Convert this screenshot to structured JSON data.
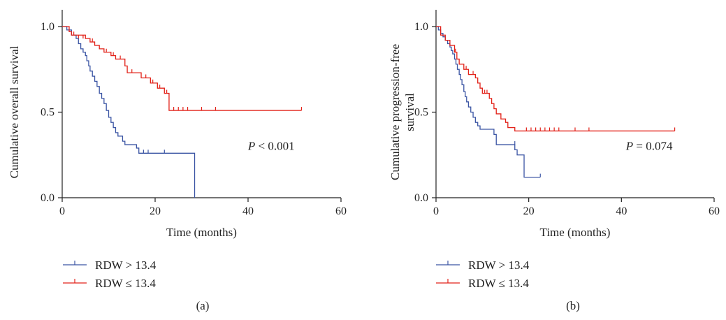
{
  "panels": [
    {
      "panel_label": "(a)",
      "chart_data": {
        "type": "line",
        "xlabel": "Time (months)",
        "ylabel": "Cumulative overall survival",
        "xlim": [
          0,
          60
        ],
        "ylim": [
          0,
          1.0
        ],
        "xticks": [
          "0",
          "20",
          "40",
          "60"
        ],
        "yticks": [
          "0.0",
          "0.5",
          "1.0"
        ],
        "annotation": {
          "prefix": "P",
          "rest": " < 0.001",
          "x": 45,
          "y": 0.28
        },
        "legend_position": "bottom-left",
        "series": [
          {
            "name": "RDW > 13.4",
            "color": "#3b55a4",
            "steps": [
              [
                0,
                1.0
              ],
              [
                1,
                0.98
              ],
              [
                2,
                0.95
              ],
              [
                3,
                0.93
              ],
              [
                3.5,
                0.9
              ],
              [
                4,
                0.87
              ],
              [
                4.5,
                0.85
              ],
              [
                5,
                0.83
              ],
              [
                5.3,
                0.8
              ],
              [
                5.7,
                0.77
              ],
              [
                6,
                0.74
              ],
              [
                6.5,
                0.71
              ],
              [
                7,
                0.68
              ],
              [
                7.5,
                0.65
              ],
              [
                8,
                0.61
              ],
              [
                8.5,
                0.58
              ],
              [
                9,
                0.55
              ],
              [
                9.5,
                0.51
              ],
              [
                10,
                0.47
              ],
              [
                10.5,
                0.44
              ],
              [
                11,
                0.41
              ],
              [
                11.5,
                0.38
              ],
              [
                12,
                0.36
              ],
              [
                13,
                0.33
              ],
              [
                13.5,
                0.31
              ],
              [
                16,
                0.29
              ],
              [
                16.5,
                0.26
              ],
              [
                28.5,
                0.0
              ]
            ],
            "end": 28.5,
            "censors": [
              [
                17.5,
                0.26
              ],
              [
                18.5,
                0.26
              ],
              [
                22,
                0.26
              ]
            ]
          },
          {
            "name": "RDW ≤ 13.4",
            "color": "#e2231a",
            "steps": [
              [
                0,
                1.0
              ],
              [
                1.5,
                0.97
              ],
              [
                2,
                0.95
              ],
              [
                5,
                0.93
              ],
              [
                6,
                0.91
              ],
              [
                7,
                0.89
              ],
              [
                8,
                0.87
              ],
              [
                9,
                0.85
              ],
              [
                10.5,
                0.83
              ],
              [
                11.5,
                0.81
              ],
              [
                13.5,
                0.77
              ],
              [
                14,
                0.73
              ],
              [
                17,
                0.7
              ],
              [
                19,
                0.67
              ],
              [
                20.5,
                0.64
              ],
              [
                22,
                0.61
              ],
              [
                23,
                0.51
              ]
            ],
            "end": 51.5,
            "censors": [
              [
                2.5,
                0.95
              ],
              [
                3.5,
                0.93
              ],
              [
                4.5,
                0.93
              ],
              [
                6.5,
                0.91
              ],
              [
                9.5,
                0.85
              ],
              [
                11,
                0.83
              ],
              [
                12.5,
                0.81
              ],
              [
                15,
                0.73
              ],
              [
                18,
                0.7
              ],
              [
                19.5,
                0.67
              ],
              [
                21,
                0.64
              ],
              [
                22.5,
                0.61
              ],
              [
                24,
                0.51
              ],
              [
                25,
                0.51
              ],
              [
                26,
                0.51
              ],
              [
                27,
                0.51
              ],
              [
                30,
                0.51
              ],
              [
                33,
                0.51
              ],
              [
                51.5,
                0.51
              ]
            ]
          }
        ]
      }
    },
    {
      "panel_label": "(b)",
      "chart_data": {
        "type": "line",
        "xlabel": "Time (months)",
        "ylabel": "Cumulative progression-free survival",
        "xlim": [
          0,
          60
        ],
        "ylim": [
          0,
          1.0
        ],
        "xticks": [
          "0",
          "20",
          "40",
          "60"
        ],
        "yticks": [
          "0.0",
          "0.5",
          "1.0"
        ],
        "annotation": {
          "prefix": "P",
          "rest": " = 0.074",
          "x": 46,
          "y": 0.28
        },
        "legend_position": "bottom-left",
        "series": [
          {
            "name": "RDW > 13.4",
            "color": "#3b55a4",
            "steps": [
              [
                0,
                1.0
              ],
              [
                0.5,
                0.98
              ],
              [
                1,
                0.96
              ],
              [
                1.5,
                0.94
              ],
              [
                2,
                0.92
              ],
              [
                2.5,
                0.9
              ],
              [
                3,
                0.88
              ],
              [
                3.3,
                0.86
              ],
              [
                3.6,
                0.84
              ],
              [
                4,
                0.81
              ],
              [
                4.3,
                0.78
              ],
              [
                4.6,
                0.75
              ],
              [
                5,
                0.72
              ],
              [
                5.3,
                0.69
              ],
              [
                5.6,
                0.66
              ],
              [
                6,
                0.62
              ],
              [
                6.3,
                0.59
              ],
              [
                6.6,
                0.56
              ],
              [
                7,
                0.53
              ],
              [
                7.5,
                0.5
              ],
              [
                8,
                0.47
              ],
              [
                8.5,
                0.44
              ],
              [
                9,
                0.42
              ],
              [
                9.5,
                0.4
              ],
              [
                12.5,
                0.37
              ],
              [
                13,
                0.31
              ],
              [
                17,
                0.28
              ],
              [
                17.5,
                0.25
              ],
              [
                19,
                0.12
              ]
            ],
            "end": 22.5,
            "censors": [
              [
                17,
                0.31
              ],
              [
                22.5,
                0.12
              ]
            ]
          },
          {
            "name": "RDW ≤ 13.4",
            "color": "#e2231a",
            "steps": [
              [
                0,
                1.0
              ],
              [
                1,
                0.95
              ],
              [
                2,
                0.92
              ],
              [
                3,
                0.89
              ],
              [
                4,
                0.85
              ],
              [
                4.5,
                0.81
              ],
              [
                5,
                0.78
              ],
              [
                6,
                0.75
              ],
              [
                7,
                0.72
              ],
              [
                8.5,
                0.7
              ],
              [
                9,
                0.67
              ],
              [
                9.5,
                0.64
              ],
              [
                10,
                0.61
              ],
              [
                11.5,
                0.58
              ],
              [
                12,
                0.55
              ],
              [
                12.5,
                0.52
              ],
              [
                13,
                0.49
              ],
              [
                14,
                0.46
              ],
              [
                15,
                0.44
              ],
              [
                15.5,
                0.41
              ],
              [
                17,
                0.39
              ]
            ],
            "end": 51.5,
            "censors": [
              [
                4.2,
                0.85
              ],
              [
                6.5,
                0.75
              ],
              [
                8,
                0.72
              ],
              [
                10.5,
                0.61
              ],
              [
                11,
                0.61
              ],
              [
                19.5,
                0.39
              ],
              [
                20.5,
                0.39
              ],
              [
                21.5,
                0.39
              ],
              [
                22.5,
                0.39
              ],
              [
                23.5,
                0.39
              ],
              [
                24.5,
                0.39
              ],
              [
                25.5,
                0.39
              ],
              [
                26.5,
                0.39
              ],
              [
                30,
                0.39
              ],
              [
                33,
                0.39
              ],
              [
                51.5,
                0.39
              ]
            ]
          }
        ]
      }
    }
  ]
}
